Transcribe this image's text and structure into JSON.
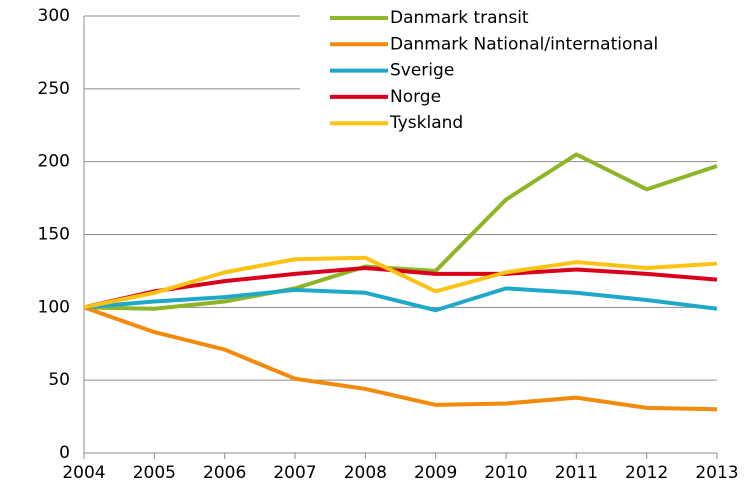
{
  "chart_data": {
    "type": "line",
    "x": [
      2004,
      2005,
      2006,
      2007,
      2008,
      2009,
      2010,
      2011,
      2012,
      2013
    ],
    "xlim": [
      2004,
      2013
    ],
    "xticks": [
      2004,
      2005,
      2006,
      2007,
      2008,
      2009,
      2010,
      2011,
      2012,
      2013
    ],
    "ylim": [
      0,
      300
    ],
    "yticks": [
      0,
      50,
      100,
      150,
      200,
      250,
      300
    ],
    "grid": true,
    "legend": "upper right",
    "series": [
      {
        "name": "Danmark transit",
        "color": "#8db526",
        "values": [
          100,
          99,
          104,
          113,
          128,
          125,
          174,
          205,
          181,
          197
        ]
      },
      {
        "name": "Danmark National/international",
        "color": "#f28a0c",
        "values": [
          100,
          83,
          71,
          51,
          44,
          33,
          34,
          38,
          31,
          30
        ]
      },
      {
        "name": "Sverige",
        "color": "#1fa9c9",
        "values": [
          100,
          104,
          107,
          112,
          110,
          98,
          113,
          110,
          105,
          99
        ]
      },
      {
        "name": "Norge",
        "color": "#d9001b",
        "values": [
          100,
          111,
          118,
          123,
          127,
          123,
          123,
          126,
          123,
          119
        ]
      },
      {
        "name": "Tyskland",
        "color": "#fcc312",
        "values": [
          100,
          110,
          124,
          133,
          134,
          111,
          124,
          131,
          127,
          130
        ]
      }
    ]
  }
}
